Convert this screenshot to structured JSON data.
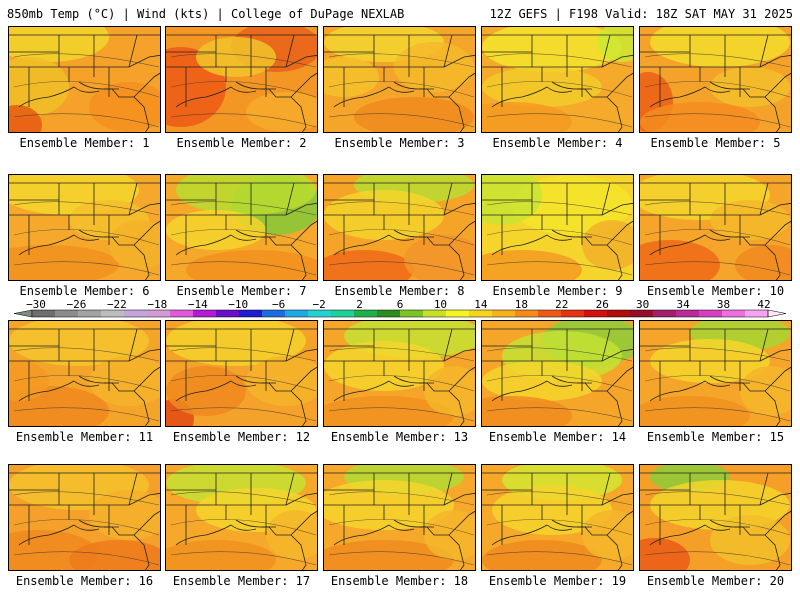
{
  "header": {
    "left": "850mb Temp (°C) | Wind (kts) | College of DuPage NEXLAB",
    "right": "12Z GEFS | F198 Valid: 18Z SAT MAY 31 2025"
  },
  "colorbar": {
    "ticks": [
      "−30",
      "−26",
      "−22",
      "−18",
      "−14",
      "−10",
      "−6",
      "−2",
      "2",
      "6",
      "10",
      "14",
      "18",
      "22",
      "26",
      "30",
      "34",
      "38",
      "42"
    ],
    "colors": [
      "#6e6e6e",
      "#8c8c8c",
      "#a3a3a3",
      "#bdbdbd",
      "#c2a6dd",
      "#d49ad6",
      "#e05ad9",
      "#b418d8",
      "#6a10c8",
      "#1e1ecf",
      "#1f6ce0",
      "#1fa9e5",
      "#25d0d0",
      "#1fd09a",
      "#20b04a",
      "#2d8e1f",
      "#7cc326",
      "#c8e024",
      "#f5f526",
      "#f5d51e",
      "#f6b11e",
      "#f58a1a",
      "#ee5a14",
      "#e63412",
      "#d31010",
      "#b00e0e",
      "#960c2a",
      "#a21f6a",
      "#bb2a98",
      "#d640c0",
      "#ee6fdf",
      "#f7a3ef"
    ]
  },
  "members": [
    {
      "label": "Ensemble Member: 1",
      "bg": "#f5a12a",
      "blobs": [
        {
          "c": "#f2d52a"
        },
        {
          "c": "#f0c027"
        },
        {
          "c": "#e65a12"
        },
        {
          "c": "#f58f1e"
        }
      ]
    },
    {
      "label": "Ensemble Member: 2",
      "bg": "#f39624",
      "blobs": [
        {
          "c": "#e9621a"
        },
        {
          "c": "#ec5a16"
        },
        {
          "c": "#f2c42a"
        },
        {
          "c": "#f5ab2a"
        }
      ]
    },
    {
      "label": "Ensemble Member: 3",
      "bg": "#f5a52a",
      "blobs": [
        {
          "c": "#f3d330"
        },
        {
          "c": "#f5b92a"
        },
        {
          "c": "#ef8a1e"
        },
        {
          "c": "#f5c02c"
        }
      ]
    },
    {
      "label": "Ensemble Member: 4",
      "bg": "#f5aa2c",
      "blobs": [
        {
          "c": "#f5e42c"
        },
        {
          "c": "#cde832"
        },
        {
          "c": "#f2cb2a"
        },
        {
          "c": "#f59a22"
        }
      ]
    },
    {
      "label": "Ensemble Member: 5",
      "bg": "#f5a22a",
      "blobs": [
        {
          "c": "#f3dc2c"
        },
        {
          "c": "#ec5e16"
        },
        {
          "c": "#f2c02c"
        },
        {
          "c": "#f58c20"
        }
      ]
    },
    {
      "label": "Ensemble Member: 6",
      "bg": "#f5a82c",
      "blobs": [
        {
          "c": "#f5d62c"
        },
        {
          "c": "#f5c02c"
        },
        {
          "c": "#f0921e"
        },
        {
          "c": "#f5b22a"
        }
      ]
    },
    {
      "label": "Ensemble Member: 7",
      "bg": "#f5a82a",
      "blobs": [
        {
          "c": "#84c93a"
        },
        {
          "c": "#b8dd30"
        },
        {
          "c": "#f5d52c"
        },
        {
          "c": "#f29020"
        }
      ]
    },
    {
      "label": "Ensemble Member: 8",
      "bg": "#f5a428",
      "blobs": [
        {
          "c": "#b8dd30"
        },
        {
          "c": "#f5d52c"
        },
        {
          "c": "#ef6a18"
        },
        {
          "c": "#f3952a"
        }
      ]
    },
    {
      "label": "Ensemble Member: 9",
      "bg": "#f5d42c",
      "blobs": [
        {
          "c": "#f5e42c"
        },
        {
          "c": "#c9e432"
        },
        {
          "c": "#f59a22"
        },
        {
          "c": "#f2b02a"
        }
      ]
    },
    {
      "label": "Ensemble Member: 10",
      "bg": "#f5a52a",
      "blobs": [
        {
          "c": "#f5d62c"
        },
        {
          "c": "#ef6a18"
        },
        {
          "c": "#f5b92a"
        },
        {
          "c": "#f08820"
        }
      ]
    },
    {
      "label": "Ensemble Member: 11",
      "bg": "#f5a42a",
      "blobs": [
        {
          "c": "#f5c62c"
        },
        {
          "c": "#f08a1e"
        },
        {
          "c": "#f5b42a"
        },
        {
          "c": "#f59a22"
        }
      ]
    },
    {
      "label": "Ensemble Member: 12",
      "bg": "#f5a22a",
      "blobs": [
        {
          "c": "#f5d22c"
        },
        {
          "c": "#e24a14"
        },
        {
          "c": "#f08a1e"
        },
        {
          "c": "#f5b42a"
        }
      ]
    },
    {
      "label": "Ensemble Member: 13",
      "bg": "#f5a52a",
      "blobs": [
        {
          "c": "#c6e232"
        },
        {
          "c": "#f5d52c"
        },
        {
          "c": "#f0901e"
        },
        {
          "c": "#f5b62a"
        }
      ]
    },
    {
      "label": "Ensemble Member: 14",
      "bg": "#f5a52a",
      "blobs": [
        {
          "c": "#8ccd38"
        },
        {
          "c": "#c6e232"
        },
        {
          "c": "#f5d52c"
        },
        {
          "c": "#f08c1e"
        }
      ]
    },
    {
      "label": "Ensemble Member: 15",
      "bg": "#f5a52a",
      "blobs": [
        {
          "c": "#a6d634"
        },
        {
          "c": "#f5d52c"
        },
        {
          "c": "#f0921e"
        },
        {
          "c": "#f5b62a"
        }
      ]
    },
    {
      "label": "Ensemble Member: 16",
      "bg": "#f5a02a",
      "blobs": [
        {
          "c": "#f5c22c"
        },
        {
          "c": "#f08a1e"
        },
        {
          "c": "#ee7a1c"
        },
        {
          "c": "#f5b22a"
        }
      ]
    },
    {
      "label": "Ensemble Member: 17",
      "bg": "#f5a82a",
      "blobs": [
        {
          "c": "#c6e232"
        },
        {
          "c": "#f5d52c"
        },
        {
          "c": "#f0921e"
        },
        {
          "c": "#f5b62a"
        }
      ]
    },
    {
      "label": "Ensemble Member: 18",
      "bg": "#f5a82a",
      "blobs": [
        {
          "c": "#b2da32"
        },
        {
          "c": "#f5d52c"
        },
        {
          "c": "#f08c1e"
        },
        {
          "c": "#f5b62a"
        }
      ]
    },
    {
      "label": "Ensemble Member: 19",
      "bg": "#f5a82a",
      "blobs": [
        {
          "c": "#d2e630"
        },
        {
          "c": "#f5d52c"
        },
        {
          "c": "#f08a1e"
        },
        {
          "c": "#f5b62a"
        }
      ]
    },
    {
      "label": "Ensemble Member: 20",
      "bg": "#f59f28",
      "blobs": [
        {
          "c": "#8ccd38"
        },
        {
          "c": "#f5d52c"
        },
        {
          "c": "#ea5a16"
        },
        {
          "c": "#f2c02a"
        }
      ]
    }
  ]
}
